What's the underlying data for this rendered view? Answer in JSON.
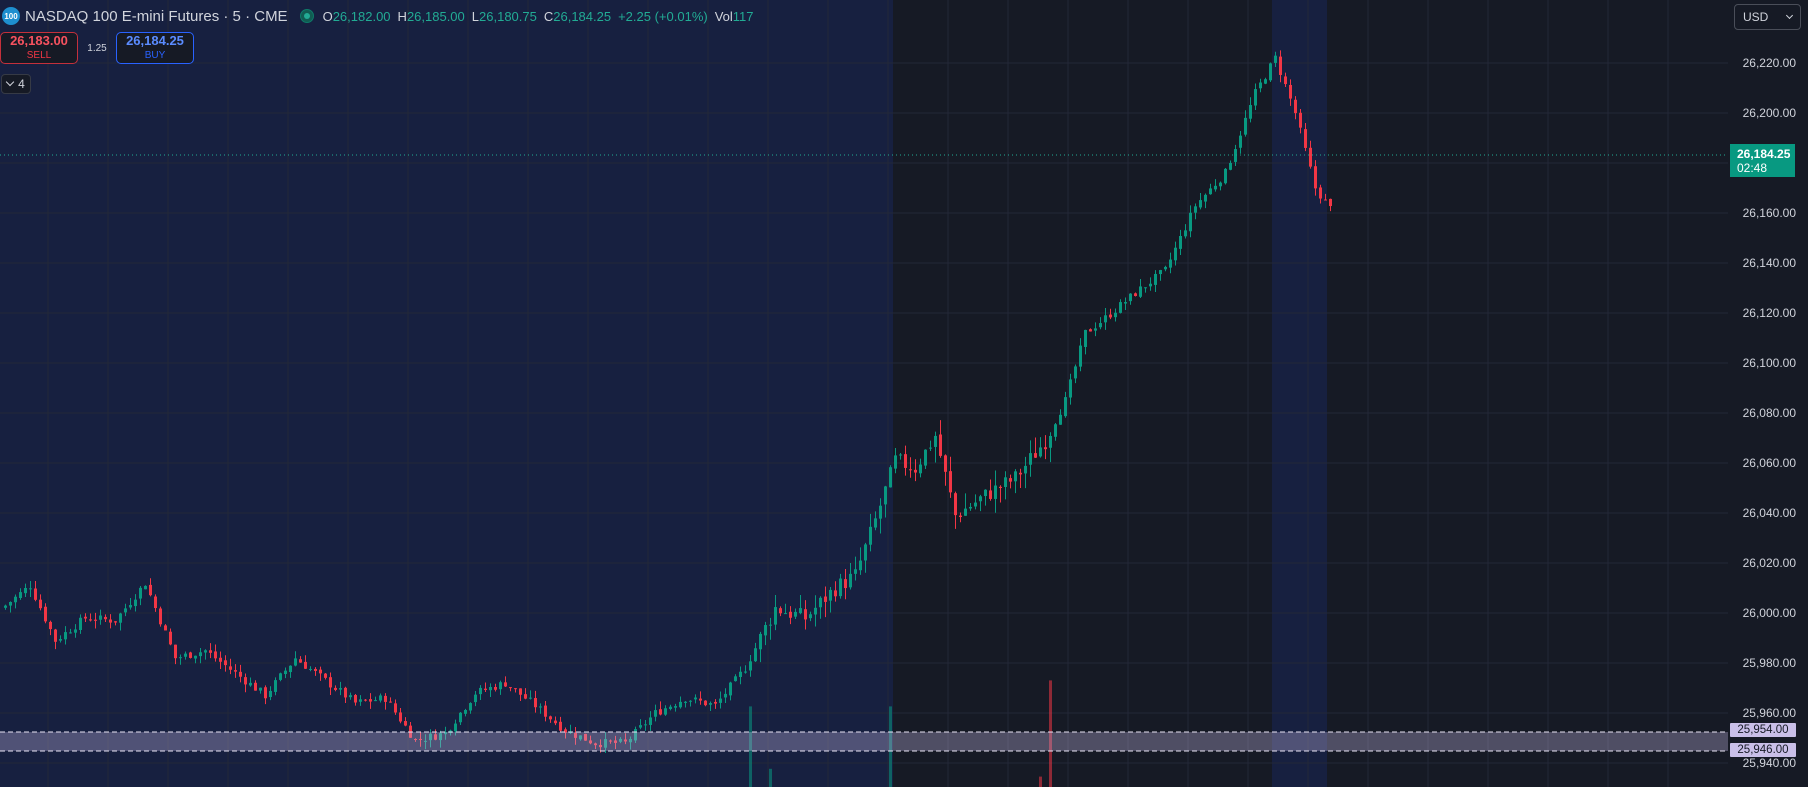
{
  "legend": {
    "logo_text": "100",
    "title": "NASDAQ 100 E-mini Futures · 5 · CME",
    "open_label": "O",
    "open": "26,182.00",
    "high_label": "H",
    "high": "26,185.00",
    "low_label": "L",
    "low": "26,180.75",
    "close_label": "C",
    "close": "26,184.25",
    "change": "+2.25 (+0.01%)",
    "vol_label": "Vol",
    "vol": "117"
  },
  "trade": {
    "sell_price": "26,183.00",
    "sell_label": "SELL",
    "spread": "1.25",
    "buy_price": "26,184.25",
    "buy_label": "BUY"
  },
  "indicators_toggle": {
    "count": "4"
  },
  "currency": {
    "value": "USD"
  },
  "price_axis": {
    "labels": [
      "26,220.00",
      "26,200.00",
      "26,160.00",
      "26,140.00",
      "26,120.00",
      "26,100.00",
      "26,080.00",
      "26,060.00",
      "26,040.00",
      "26,020.00",
      "26,000.00",
      "25,980.00",
      "25,960.00",
      "25,940.00"
    ]
  },
  "last_price": {
    "price": "26,184.25",
    "countdown": "02:48"
  },
  "horizontal_lines": {
    "upper": "25,954.00",
    "lower": "25,946.00"
  },
  "colors": {
    "up": "#089981",
    "down": "#f23645",
    "session_bg": "#172040",
    "grid": "#222736"
  },
  "chart_data": {
    "type": "candlestick",
    "y_range": [
      25935,
      26232
    ],
    "close_path": [
      [
        0,
        26003
      ],
      [
        5,
        26011
      ],
      [
        10,
        25989
      ],
      [
        16,
        25998
      ],
      [
        22,
        25997
      ],
      [
        28,
        26012
      ],
      [
        34,
        25982
      ],
      [
        40,
        25985
      ],
      [
        46,
        25976
      ],
      [
        52,
        25967
      ],
      [
        58,
        25982
      ],
      [
        64,
        25973
      ],
      [
        70,
        25964
      ],
      [
        76,
        25966
      ],
      [
        82,
        25949
      ],
      [
        88,
        25952
      ],
      [
        94,
        25968
      ],
      [
        100,
        25972
      ],
      [
        106,
        25963
      ],
      [
        112,
        25953
      ],
      [
        118,
        25948
      ],
      [
        124,
        25948
      ],
      [
        130,
        25960
      ],
      [
        136,
        25966
      ],
      [
        142,
        25963
      ],
      [
        148,
        25978
      ],
      [
        154,
        26002
      ],
      [
        160,
        25998
      ],
      [
        166,
        26010
      ],
      [
        170,
        26015
      ],
      [
        174,
        26037
      ],
      [
        178,
        26061
      ],
      [
        182,
        26058
      ],
      [
        186,
        26071
      ],
      [
        190,
        26039
      ],
      [
        196,
        26047
      ],
      [
        202,
        26054
      ],
      [
        208,
        26069
      ],
      [
        212,
        26085
      ],
      [
        216,
        26112
      ],
      [
        220,
        26118
      ],
      [
        226,
        26128
      ],
      [
        232,
        26137
      ],
      [
        238,
        26163
      ],
      [
        244,
        26176
      ],
      [
        250,
        26208
      ],
      [
        254,
        26222
      ],
      [
        258,
        26200
      ],
      [
        262,
        26170
      ],
      [
        266,
        26159
      ],
      [
        272,
        26167
      ],
      [
        278,
        26172
      ],
      [
        282,
        26181
      ],
      [
        286,
        26184.25
      ]
    ],
    "volume_spikes": [
      {
        "bar": 149,
        "value": 0.62,
        "dir": "up"
      },
      {
        "bar": 177,
        "value": 0.62,
        "dir": "up"
      },
      {
        "bar": 209,
        "value": 0.82,
        "dir": "down"
      },
      {
        "bar": 153,
        "value": 0.14,
        "dir": "up"
      },
      {
        "bar": 207,
        "value": 0.08,
        "dir": "down"
      }
    ]
  }
}
